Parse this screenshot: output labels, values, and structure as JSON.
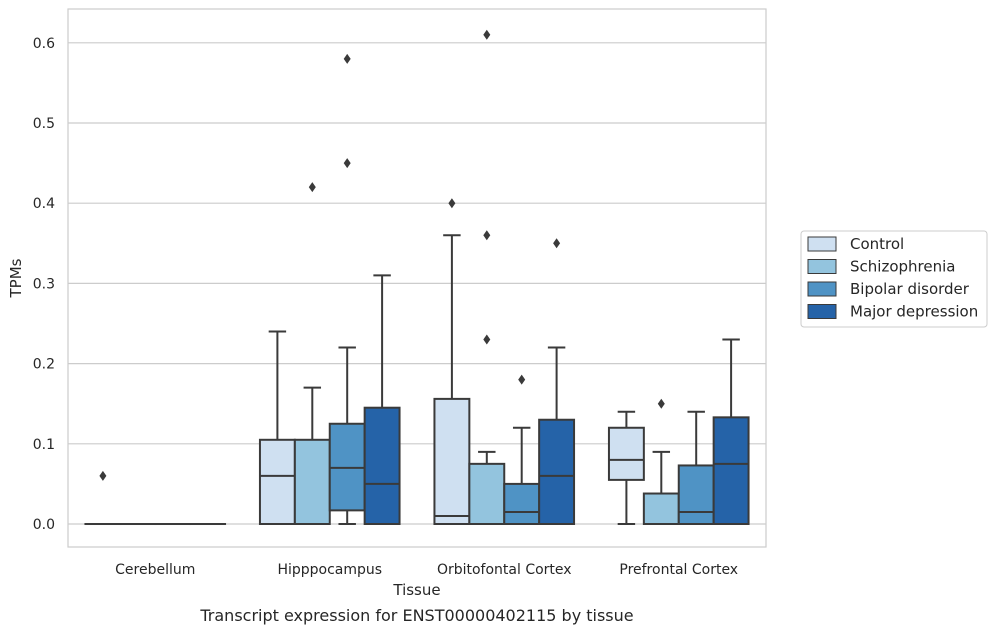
{
  "caption": "Transcript expression for ENST00000402115 by tissue",
  "chart_data": {
    "type": "box",
    "title": "",
    "xlabel": "Tissue",
    "ylabel": "TPMs",
    "ylim": [
      -0.03,
      0.64
    ],
    "yticks": [
      0.0,
      0.1,
      0.2,
      0.3,
      0.4,
      0.5,
      0.6
    ],
    "ytick_labels": [
      "0.0",
      "0.1",
      "0.2",
      "0.3",
      "0.4",
      "0.5",
      "0.6"
    ],
    "grid": "horizontal",
    "legend_position": "right",
    "categories": [
      "Cerebellum",
      "Hipppocampus",
      "Orbitofontal Cortex",
      "Prefrontal Cortex"
    ],
    "series": [
      {
        "name": "Control",
        "color": "#cfe0f1",
        "boxes": [
          {
            "category": "Cerebellum",
            "whisker_low": 0.0,
            "q1": 0.0,
            "median": 0.0,
            "q3": 0.0,
            "whisker_high": 0.0,
            "outliers": [
              0.06
            ]
          },
          {
            "category": "Hipppocampus",
            "whisker_low": 0.0,
            "q1": 0.0,
            "median": 0.06,
            "q3": 0.105,
            "whisker_high": 0.24,
            "outliers": []
          },
          {
            "category": "Orbitofontal Cortex",
            "whisker_low": 0.0,
            "q1": 0.0,
            "median": 0.01,
            "q3": 0.156,
            "whisker_high": 0.36,
            "outliers": [
              0.4
            ]
          },
          {
            "category": "Prefrontal Cortex",
            "whisker_low": 0.0,
            "q1": 0.055,
            "median": 0.08,
            "q3": 0.12,
            "whisker_high": 0.14,
            "outliers": []
          }
        ]
      },
      {
        "name": "Schizophrenia",
        "color": "#93c4de",
        "boxes": [
          {
            "category": "Cerebellum",
            "whisker_low": 0.0,
            "q1": 0.0,
            "median": 0.0,
            "q3": 0.0,
            "whisker_high": 0.0,
            "outliers": []
          },
          {
            "category": "Hipppocampus",
            "whisker_low": 0.0,
            "q1": 0.0,
            "median": 0.0,
            "q3": 0.105,
            "whisker_high": 0.17,
            "outliers": [
              0.42
            ]
          },
          {
            "category": "Orbitofontal Cortex",
            "whisker_low": 0.0,
            "q1": 0.0,
            "median": 0.0,
            "q3": 0.075,
            "whisker_high": 0.09,
            "outliers": [
              0.23,
              0.36,
              0.61
            ]
          },
          {
            "category": "Prefrontal Cortex",
            "whisker_low": 0.0,
            "q1": 0.0,
            "median": 0.0,
            "q3": 0.038,
            "whisker_high": 0.09,
            "outliers": [
              0.15
            ]
          }
        ]
      },
      {
        "name": "Bipolar disorder",
        "color": "#4f93c5",
        "boxes": [
          {
            "category": "Cerebellum",
            "whisker_low": 0.0,
            "q1": 0.0,
            "median": 0.0,
            "q3": 0.0,
            "whisker_high": 0.0,
            "outliers": []
          },
          {
            "category": "Hipppocampus",
            "whisker_low": 0.0,
            "q1": 0.017,
            "median": 0.07,
            "q3": 0.125,
            "whisker_high": 0.22,
            "outliers": [
              0.45,
              0.58
            ]
          },
          {
            "category": "Orbitofontal Cortex",
            "whisker_low": 0.0,
            "q1": 0.0,
            "median": 0.015,
            "q3": 0.05,
            "whisker_high": 0.12,
            "outliers": [
              0.18
            ]
          },
          {
            "category": "Prefrontal Cortex",
            "whisker_low": 0.0,
            "q1": 0.0,
            "median": 0.015,
            "q3": 0.073,
            "whisker_high": 0.14,
            "outliers": []
          }
        ]
      },
      {
        "name": "Major depression",
        "color": "#2563a8",
        "boxes": [
          {
            "category": "Cerebellum",
            "whisker_low": 0.0,
            "q1": 0.0,
            "median": 0.0,
            "q3": 0.0,
            "whisker_high": 0.0,
            "outliers": []
          },
          {
            "category": "Hipppocampus",
            "whisker_low": 0.0,
            "q1": 0.0,
            "median": 0.05,
            "q3": 0.145,
            "whisker_high": 0.31,
            "outliers": []
          },
          {
            "category": "Orbitofontal Cortex",
            "whisker_low": 0.0,
            "q1": 0.0,
            "median": 0.06,
            "q3": 0.13,
            "whisker_high": 0.22,
            "outliers": [
              0.35
            ]
          },
          {
            "category": "Prefrontal Cortex",
            "whisker_low": 0.0,
            "q1": 0.0,
            "median": 0.075,
            "q3": 0.133,
            "whisker_high": 0.23,
            "outliers": []
          }
        ]
      }
    ]
  }
}
